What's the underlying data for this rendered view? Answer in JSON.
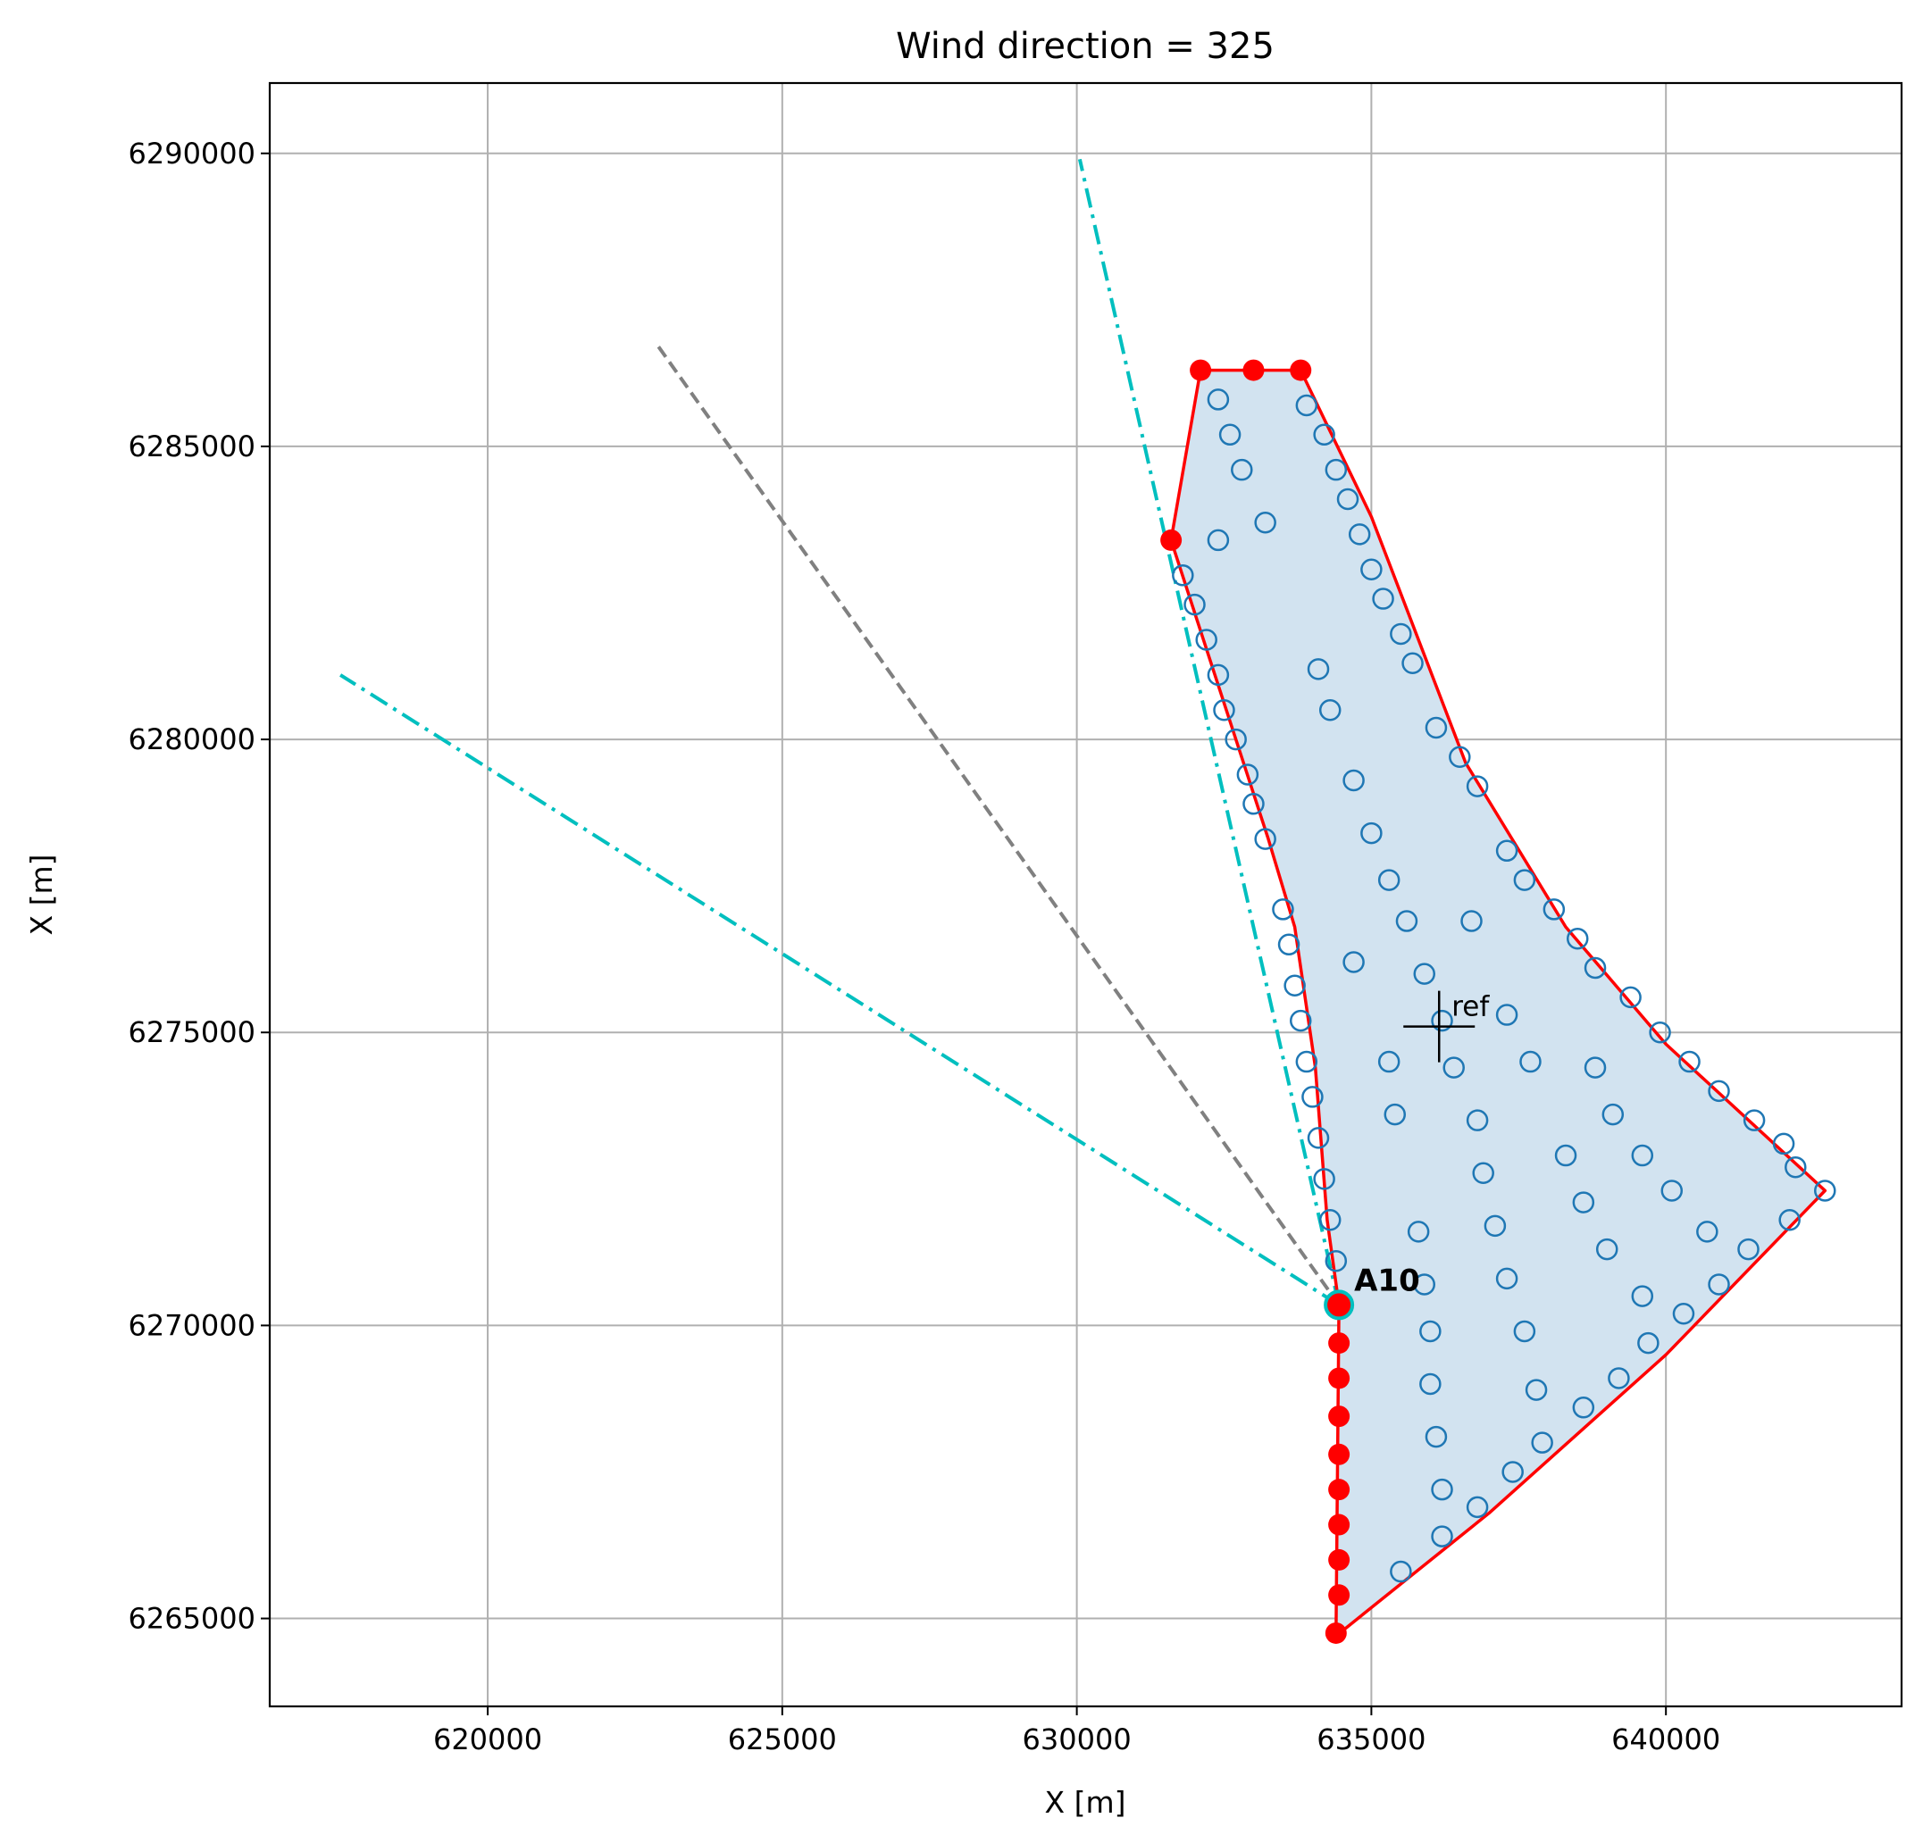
{
  "chart_data": {
    "type": "scatter",
    "title": "Wind direction = 325",
    "xlabel": "X [m]",
    "ylabel": "X [m]",
    "xlim": [
      616300,
      644000
    ],
    "ylim": [
      6263500,
      6291200
    ],
    "grid": true,
    "x_ticks": [
      620000,
      625000,
      630000,
      635000,
      640000
    ],
    "y_ticks": [
      6265000,
      6270000,
      6275000,
      6280000,
      6285000,
      6290000
    ],
    "x_tick_labels": [
      "620000",
      "625000",
      "630000",
      "635000",
      "640000"
    ],
    "y_tick_labels": [
      "6265000",
      "6270000",
      "6275000",
      "6280000",
      "6285000",
      "6290000"
    ],
    "colors": {
      "turbine": "#1f77b4",
      "boundary": "#ff0000",
      "fill": "#d2e3f0",
      "sector": "#00bfbf",
      "wind": "#808080",
      "grid": "#b0b0b0"
    },
    "farm_area": [
      [
        634400,
        6264700
      ],
      [
        634450,
        6270350
      ],
      [
        634250,
        6271800
      ],
      [
        634050,
        6274400
      ],
      [
        633700,
        6276800
      ],
      [
        633250,
        6278300
      ],
      [
        631600,
        6283400
      ],
      [
        632100,
        6286300
      ],
      [
        633800,
        6286300
      ],
      [
        635000,
        6283800
      ],
      [
        636600,
        6279600
      ],
      [
        638300,
        6276800
      ],
      [
        640000,
        6274800
      ],
      [
        642700,
        6272300
      ],
      [
        640000,
        6269500
      ],
      [
        637000,
        6266800
      ]
    ],
    "boundary_line": [
      [
        634450,
        6270350
      ],
      [
        634250,
        6271800
      ],
      [
        634050,
        6274400
      ],
      [
        633700,
        6276800
      ],
      [
        633250,
        6278300
      ],
      [
        631600,
        6283400
      ],
      [
        632100,
        6286300
      ],
      [
        633800,
        6286300
      ],
      [
        635000,
        6283800
      ],
      [
        636600,
        6279600
      ],
      [
        638300,
        6276800
      ],
      [
        640000,
        6274800
      ],
      [
        642700,
        6272300
      ],
      [
        640000,
        6269500
      ],
      [
        637000,
        6266800
      ],
      [
        634400,
        6264700
      ],
      [
        634450,
        6270350
      ]
    ],
    "boundary_points": [
      [
        631600,
        6283400
      ],
      [
        632100,
        6286300
      ],
      [
        633000,
        6286300
      ],
      [
        633800,
        6286300
      ],
      [
        634450,
        6269700
      ],
      [
        634450,
        6269100
      ],
      [
        634450,
        6268450
      ],
      [
        634450,
        6267800
      ],
      [
        634450,
        6267200
      ],
      [
        634450,
        6266600
      ],
      [
        634450,
        6266000
      ],
      [
        634450,
        6265400
      ],
      [
        634400,
        6264750
      ]
    ],
    "turbines": [
      [
        632400,
        6285800
      ],
      [
        632600,
        6285200
      ],
      [
        632800,
        6284600
      ],
      [
        632400,
        6283400
      ],
      [
        633200,
        6283700
      ],
      [
        633900,
        6285700
      ],
      [
        634200,
        6285200
      ],
      [
        634400,
        6284600
      ],
      [
        634600,
        6284100
      ],
      [
        634800,
        6283500
      ],
      [
        635000,
        6282900
      ],
      [
        635200,
        6282400
      ],
      [
        635500,
        6281800
      ],
      [
        635700,
        6281300
      ],
      [
        631800,
        6282800
      ],
      [
        632000,
        6282300
      ],
      [
        632200,
        6281700
      ],
      [
        632400,
        6281100
      ],
      [
        632500,
        6280500
      ],
      [
        632700,
        6280000
      ],
      [
        632900,
        6279400
      ],
      [
        633000,
        6278900
      ],
      [
        633200,
        6278300
      ],
      [
        633500,
        6277100
      ],
      [
        633600,
        6276500
      ],
      [
        633700,
        6275800
      ],
      [
        633800,
        6275200
      ],
      [
        633900,
        6274500
      ],
      [
        634000,
        6273900
      ],
      [
        634100,
        6273200
      ],
      [
        634200,
        6272500
      ],
      [
        634300,
        6271800
      ],
      [
        634400,
        6271100
      ],
      [
        634100,
        6281200
      ],
      [
        634300,
        6280500
      ],
      [
        634700,
        6279300
      ],
      [
        635000,
        6278400
      ],
      [
        635300,
        6277600
      ],
      [
        635600,
        6276900
      ],
      [
        636100,
        6280200
      ],
      [
        636500,
        6279700
      ],
      [
        636800,
        6279200
      ],
      [
        637300,
        6278100
      ],
      [
        637600,
        6277600
      ],
      [
        638100,
        6277100
      ],
      [
        638500,
        6276600
      ],
      [
        638800,
        6276100
      ],
      [
        639400,
        6275600
      ],
      [
        639900,
        6275000
      ],
      [
        640400,
        6274500
      ],
      [
        640900,
        6274000
      ],
      [
        641500,
        6273500
      ],
      [
        642000,
        6273100
      ],
      [
        642700,
        6272300
      ],
      [
        642200,
        6272700
      ],
      [
        634700,
        6276200
      ],
      [
        635900,
        6276000
      ],
      [
        636200,
        6275200
      ],
      [
        636700,
        6276900
      ],
      [
        637300,
        6275300
      ],
      [
        635300,
        6274500
      ],
      [
        635400,
        6273600
      ],
      [
        636400,
        6274400
      ],
      [
        636800,
        6273500
      ],
      [
        637700,
        6274500
      ],
      [
        638800,
        6274400
      ],
      [
        639100,
        6273600
      ],
      [
        639600,
        6272900
      ],
      [
        636900,
        6272600
      ],
      [
        638300,
        6272900
      ],
      [
        640100,
        6272300
      ],
      [
        640700,
        6271600
      ],
      [
        635800,
        6271600
      ],
      [
        637100,
        6271700
      ],
      [
        638600,
        6272100
      ],
      [
        641400,
        6271300
      ],
      [
        642100,
        6271800
      ],
      [
        635900,
        6270700
      ],
      [
        637300,
        6270800
      ],
      [
        639000,
        6271300
      ],
      [
        639600,
        6270500
      ],
      [
        640900,
        6270700
      ],
      [
        636000,
        6269900
      ],
      [
        637600,
        6269900
      ],
      [
        640300,
        6270200
      ],
      [
        636000,
        6269000
      ],
      [
        637800,
        6268900
      ],
      [
        638600,
        6268600
      ],
      [
        639200,
        6269100
      ],
      [
        639700,
        6269700
      ],
      [
        636100,
        6268100
      ],
      [
        637900,
        6268000
      ],
      [
        636200,
        6267200
      ],
      [
        637400,
        6267500
      ],
      [
        636800,
        6266900
      ],
      [
        636200,
        6266400
      ],
      [
        635500,
        6265800
      ]
    ],
    "highlight_turbine": {
      "label": "A10",
      "x": 634450,
      "y": 6270350
    },
    "ref_point": {
      "label": "ref",
      "x": 636150,
      "y": 6275100
    },
    "sector_lines": [
      [
        [
          634450,
          6270350
        ],
        [
          630050,
          6289900
        ]
      ],
      [
        [
          634450,
          6270350
        ],
        [
          617500,
          6281100
        ]
      ]
    ],
    "wind_line": [
      [
        634450,
        6270350
      ],
      [
        622900,
        6286700
      ]
    ]
  }
}
